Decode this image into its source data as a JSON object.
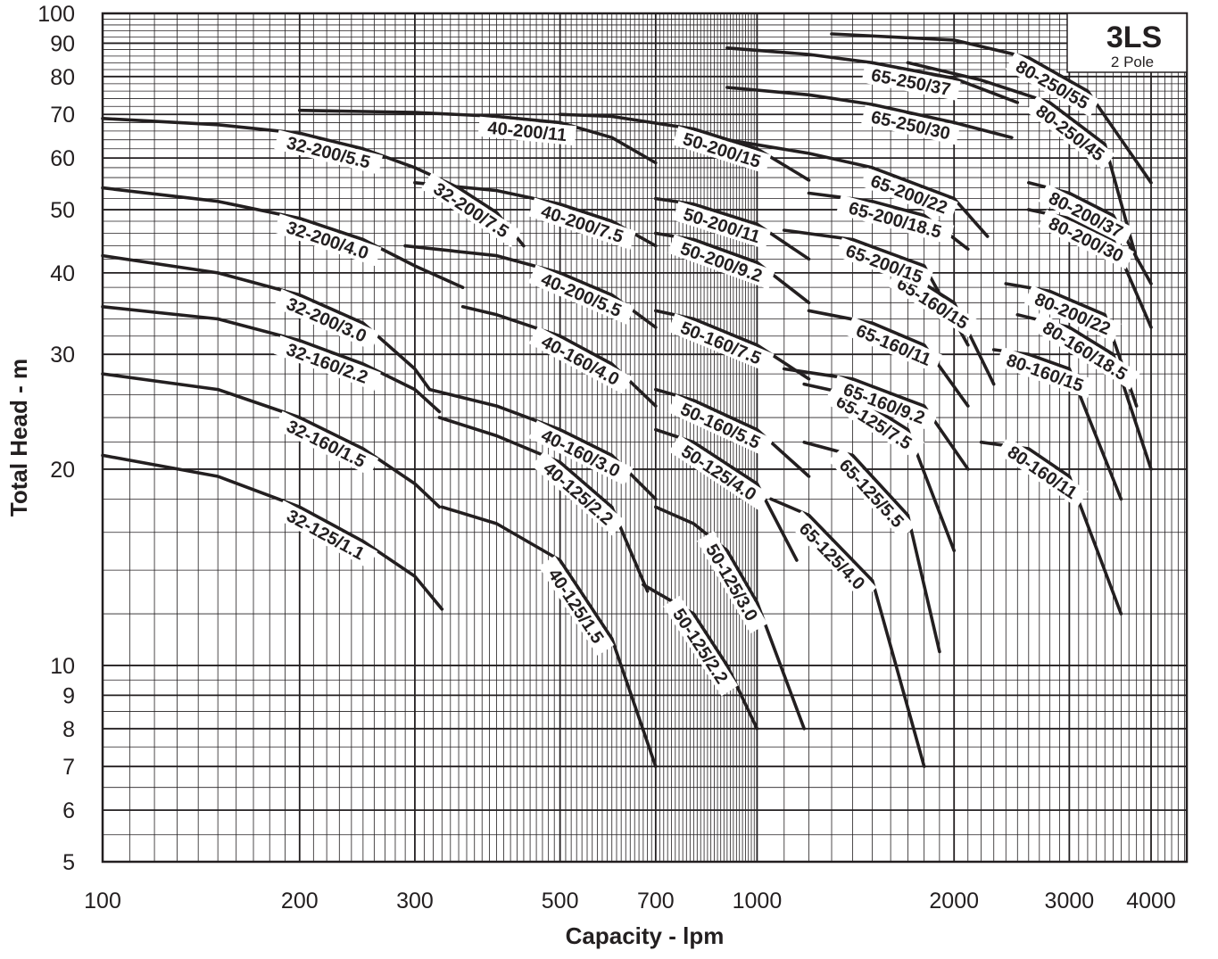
{
  "chart_data": {
    "type": "line",
    "title": "3LS",
    "subtitle": "2 Pole",
    "xlabel": "Capacity - lpm",
    "ylabel": "Total Head - m",
    "xscale": "log",
    "yscale": "log",
    "xlim": [
      100,
      5000
    ],
    "ylim": [
      5,
      100
    ],
    "grid": true,
    "x_ticks": [
      "100",
      "200",
      "300",
      "500",
      "700",
      "1000",
      "2000",
      "3000",
      "4000"
    ],
    "y_ticks": [
      "5",
      "6",
      "7",
      "8",
      "9",
      "10",
      "20",
      "30",
      "40",
      "50",
      "60",
      "70",
      "80",
      "90",
      "100"
    ],
    "colors": {
      "line": "#231f20",
      "grid": "#231f20",
      "background": "#ffffff"
    },
    "series": [
      {
        "name": "32-125/1.1",
        "x": [
          100,
          150,
          200,
          250,
          300,
          330
        ],
        "y": [
          21,
          19.5,
          17.5,
          15.5,
          13.7,
          12.2
        ]
      },
      {
        "name": "32-160/1.5",
        "x": [
          100,
          150,
          200,
          250,
          300,
          327
        ],
        "y": [
          28,
          26.5,
          24,
          21.5,
          19,
          17.5
        ]
      },
      {
        "name": "32-160/2.2",
        "x": [
          100,
          150,
          200,
          250,
          300,
          327
        ],
        "y": [
          35.5,
          34,
          31.5,
          29,
          26.5,
          24.5
        ]
      },
      {
        "name": "32-200/3.0",
        "x": [
          100,
          150,
          200,
          250,
          300,
          316
        ],
        "y": [
          42.5,
          40,
          37,
          33.5,
          28.5,
          26.5
        ]
      },
      {
        "name": "32-200/4.0",
        "x": [
          100,
          150,
          200,
          250,
          300,
          355
        ],
        "y": [
          54,
          51.5,
          48.5,
          45,
          41,
          38
        ]
      },
      {
        "name": "32-200/5.5",
        "x": [
          100,
          150,
          200,
          250,
          300
        ],
        "y": [
          69,
          67.5,
          65.5,
          62,
          58
        ]
      },
      {
        "name": "32-200/7.5",
        "x": [
          300,
          350,
          400,
          440
        ],
        "y": [
          58,
          54,
          49.5,
          44
        ]
      },
      {
        "name": "40-125/1.5",
        "x": [
          330,
          400,
          500,
          600,
          700
        ],
        "y": [
          17.5,
          16.5,
          14.5,
          11,
          7
        ]
      },
      {
        "name": "40-125/2.2",
        "x": [
          327,
          400,
          500,
          600,
          680
        ],
        "y": [
          24,
          22.5,
          20.5,
          17.5,
          13
        ]
      },
      {
        "name": "40-160/3.0",
        "x": [
          316,
          400,
          500,
          600,
          700
        ],
        "y": [
          26.5,
          25,
          23,
          21,
          18
        ]
      },
      {
        "name": "40-160/4.0",
        "x": [
          355,
          400,
          500,
          600,
          700
        ],
        "y": [
          35.5,
          34.5,
          32,
          29,
          25
        ]
      },
      {
        "name": "40-200/5.5",
        "x": [
          290,
          400,
          500,
          600,
          700
        ],
        "y": [
          44,
          42.5,
          40,
          37,
          33
        ]
      },
      {
        "name": "40-200/7.5",
        "x": [
          300,
          400,
          500,
          600,
          700
        ],
        "y": [
          55,
          53.5,
          51,
          48,
          44
        ]
      },
      {
        "name": "40-200/11",
        "x": [
          200,
          300,
          400,
          500,
          600,
          700
        ],
        "y": [
          71,
          70.5,
          69.5,
          68,
          64.5,
          59
        ]
      },
      {
        "name": "50-125/2.2",
        "x": [
          670,
          800,
          900,
          1000
        ],
        "y": [
          13.3,
          12,
          10,
          8
        ]
      },
      {
        "name": "50-125/3.0",
        "x": [
          700,
          800,
          900,
          1000,
          1180
        ],
        "y": [
          17.5,
          16.5,
          15,
          12.5,
          8
        ]
      },
      {
        "name": "50-125/4.0",
        "x": [
          700,
          800,
          1000,
          1150
        ],
        "y": [
          23,
          22,
          19,
          14.5
        ]
      },
      {
        "name": "50-160/5.5",
        "x": [
          700,
          800,
          1000,
          1200
        ],
        "y": [
          26.5,
          25.5,
          23,
          19.5
        ]
      },
      {
        "name": "50-160/7.5",
        "x": [
          700,
          800,
          1000,
          1200
        ],
        "y": [
          35,
          34,
          31,
          27.5
        ]
      },
      {
        "name": "50-200/9.2",
        "x": [
          700,
          800,
          1000,
          1200
        ],
        "y": [
          46,
          45,
          41.5,
          36
        ]
      },
      {
        "name": "50-200/11",
        "x": [
          700,
          800,
          1000,
          1200
        ],
        "y": [
          52,
          51,
          47.5,
          42
        ]
      },
      {
        "name": "50-200/15",
        "x": [
          500,
          600,
          800,
          1000,
          1200
        ],
        "y": [
          70,
          69.5,
          66.5,
          62,
          55.5
        ]
      },
      {
        "name": "65-125/4.0",
        "x": [
          1050,
          1200,
          1500,
          1800
        ],
        "y": [
          18,
          17,
          13.5,
          7
        ]
      },
      {
        "name": "65-125/5.5",
        "x": [
          1180,
          1400,
          1700,
          1900
        ],
        "y": [
          22,
          21,
          17,
          10.5
        ]
      },
      {
        "name": "65-125/7.5",
        "x": [
          1180,
          1400,
          1700,
          2000
        ],
        "y": [
          27,
          26,
          23,
          15
        ]
      },
      {
        "name": "65-160/9.2",
        "x": [
          1100,
          1400,
          1800,
          2100
        ],
        "y": [
          28.5,
          27.5,
          25,
          20
        ]
      },
      {
        "name": "65-160/11",
        "x": [
          1200,
          1500,
          1800,
          2100
        ],
        "y": [
          35,
          33.5,
          31,
          25
        ]
      },
      {
        "name": "65-160/15",
        "x": [
          1600,
          1800,
          2000,
          2300
        ],
        "y": [
          40,
          38.5,
          36,
          27
        ]
      },
      {
        "name": "65-200/15",
        "x": [
          1100,
          1400,
          1800,
          2100
        ],
        "y": [
          46.5,
          45,
          41,
          31
        ]
      },
      {
        "name": "65-200/18.5",
        "x": [
          1200,
          1500,
          1800,
          2100
        ],
        "y": [
          53,
          51.5,
          49,
          43.5
        ]
      },
      {
        "name": "65-200/22",
        "x": [
          900,
          1200,
          1500,
          2000,
          2250
        ],
        "y": [
          64,
          61,
          58,
          52,
          45.5
        ]
      },
      {
        "name": "65-250/30",
        "x": [
          900,
          1200,
          1500,
          2000,
          2450
        ],
        "y": [
          77,
          75,
          72.5,
          68,
          64.5
        ]
      },
      {
        "name": "65-250/37",
        "x": [
          900,
          1200,
          1500,
          2000,
          2500
        ],
        "y": [
          88.5,
          86.5,
          84,
          79.5,
          73
        ]
      },
      {
        "name": "80-160/11",
        "x": [
          2200,
          2600,
          3000,
          3600
        ],
        "y": [
          22,
          21.5,
          19.5,
          12
        ]
      },
      {
        "name": "80-160/15",
        "x": [
          2300,
          2600,
          3000,
          3600
        ],
        "y": [
          30.5,
          30,
          28.5,
          18
        ]
      },
      {
        "name": "80-160/18.5",
        "x": [
          2500,
          3000,
          3500,
          4000
        ],
        "y": [
          34.5,
          33,
          30,
          20
        ]
      },
      {
        "name": "80-200/22",
        "x": [
          2400,
          2800,
          3400,
          3800
        ],
        "y": [
          38.5,
          37.5,
          34.5,
          25
        ]
      },
      {
        "name": "80-200/30",
        "x": [
          2600,
          3000,
          3500,
          4000
        ],
        "y": [
          50,
          48.5,
          45,
          33
        ]
      },
      {
        "name": "80-200/37",
        "x": [
          2600,
          3000,
          3500,
          4000
        ],
        "y": [
          55,
          53,
          49,
          38.5
        ]
      },
      {
        "name": "80-250/45",
        "x": [
          1700,
          2200,
          2800,
          3400,
          3800
        ],
        "y": [
          84,
          79,
          73,
          63,
          42
        ]
      },
      {
        "name": "80-250/55",
        "x": [
          1300,
          2000,
          2600,
          3200,
          4000
        ],
        "y": [
          93,
          91,
          85.5,
          76,
          55
        ]
      }
    ]
  }
}
